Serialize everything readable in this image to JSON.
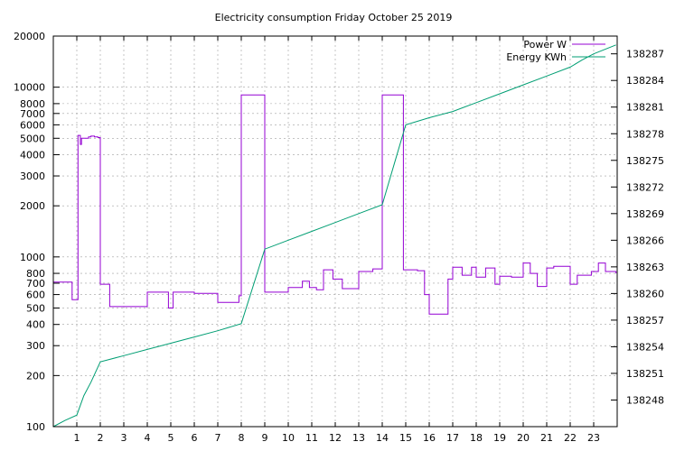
{
  "chart_data": {
    "type": "line",
    "title": "Electricity consumption Friday October 25 2019",
    "xlabel": "",
    "ylabel": "",
    "y2label": "",
    "x_range": [
      0,
      24
    ],
    "x_ticks": [
      1,
      2,
      3,
      4,
      5,
      6,
      7,
      8,
      9,
      10,
      11,
      12,
      13,
      14,
      15,
      16,
      17,
      18,
      19,
      20,
      21,
      22,
      23
    ],
    "y_scale": "log",
    "ylim": [
      100,
      20000
    ],
    "y_ticks": [
      100,
      200,
      300,
      400,
      500,
      600,
      700,
      800,
      1000,
      2000,
      3000,
      4000,
      5000,
      6000,
      7000,
      8000,
      10000,
      20000
    ],
    "y_tick_labels": [
      "100",
      "200",
      "300",
      "400",
      "500",
      "600",
      "700",
      "800",
      "1000",
      "2000",
      "3000",
      "4000",
      "5000",
      "6000",
      "7000",
      "8000",
      "10000",
      "20000"
    ],
    "y2lim": [
      138245,
      138289
    ],
    "y2_ticks": [
      138248,
      138251,
      138254,
      138257,
      138260,
      138263,
      138266,
      138269,
      138272,
      138275,
      138278,
      138281,
      138284,
      138287
    ],
    "grid": true,
    "legend_position": "top-right",
    "series": [
      {
        "name": "Power W",
        "axis": "left",
        "color": "#9400d3",
        "step": true,
        "x": [
          0,
          0.75,
          0.8,
          1.0,
          1.05,
          1.15,
          1.2,
          1.5,
          1.6,
          1.75,
          1.9,
          2.0,
          2.05,
          2.4,
          3.0,
          3.5,
          4.0,
          4.5,
          4.9,
          5.0,
          5.1,
          6.0,
          7.0,
          7.5,
          7.9,
          8.0,
          8.1,
          8.5,
          9.0,
          9.5,
          10.0,
          10.6,
          10.9,
          11.2,
          11.5,
          11.9,
          12.3,
          12.6,
          13.0,
          13.6,
          13.9,
          14.0,
          14.1,
          14.5,
          14.9,
          15.2,
          15.5,
          15.8,
          16.0,
          16.3,
          16.8,
          17.0,
          17.4,
          17.8,
          18.0,
          18.4,
          18.8,
          19.0,
          19.5,
          20.0,
          20.3,
          20.6,
          21.0,
          21.3,
          21.9,
          22.0,
          22.3,
          22.9,
          23.2,
          23.5,
          23.95
        ],
        "y": [
          710,
          710,
          560,
          560,
          5200,
          4600,
          5000,
          5100,
          5150,
          5100,
          5050,
          690,
          690,
          510,
          510,
          510,
          620,
          620,
          500,
          500,
          620,
          610,
          540,
          540,
          590,
          9000,
          9000,
          9000,
          620,
          620,
          660,
          720,
          660,
          640,
          840,
          740,
          650,
          650,
          820,
          850,
          850,
          9000,
          9000,
          9000,
          840,
          840,
          830,
          600,
          460,
          460,
          740,
          870,
          780,
          870,
          760,
          860,
          690,
          770,
          760,
          920,
          800,
          670,
          860,
          880,
          880,
          690,
          780,
          820,
          920,
          820,
          800
        ]
      },
      {
        "name": "Energy KWh",
        "axis": "right",
        "color": "#009e73",
        "x": [
          0,
          0.5,
          1.0,
          1.3,
          1.6,
          2.0,
          3.0,
          4.0,
          5.0,
          6.0,
          7.0,
          8.0,
          9.0,
          10.0,
          11.0,
          12.0,
          13.0,
          14.0,
          14.5,
          15.0,
          16.0,
          17.0,
          18.0,
          19.0,
          20.0,
          21.0,
          22.0,
          22.5,
          23.0,
          23.95
        ],
        "y": [
          138245,
          138245.7,
          138246.3,
          138248.5,
          138250,
          138252.3,
          138253,
          138253.7,
          138254.4,
          138255.1,
          138255.8,
          138256.6,
          138265,
          138266,
          138267,
          138268,
          138269,
          138270,
          138274.5,
          138279,
          138279.8,
          138280.5,
          138281.5,
          138282.5,
          138283.5,
          138284.5,
          138285.5,
          138286.3,
          138287,
          138288
        ]
      }
    ]
  }
}
